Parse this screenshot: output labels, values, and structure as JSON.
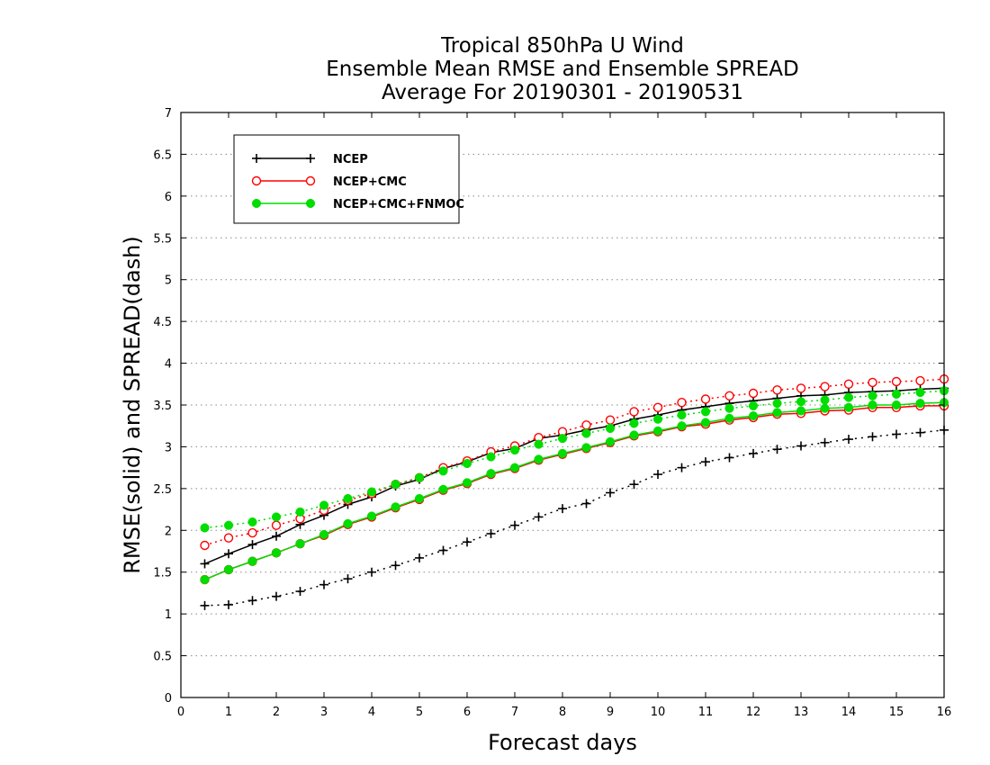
{
  "chart_data": {
    "type": "line",
    "title_lines": [
      "Tropical 850hPa U Wind",
      "Ensemble Mean RMSE and Ensemble SPREAD",
      "Average For 20190301 - 20190531"
    ],
    "xlabel": "Forecast days",
    "ylabel": "RMSE(solid) and SPREAD(dash)",
    "xlim": [
      0,
      16
    ],
    "ylim": [
      0,
      7
    ],
    "xticks": [
      "0",
      "1",
      "2",
      "3",
      "4",
      "5",
      "6",
      "7",
      "8",
      "9",
      "10",
      "11",
      "12",
      "13",
      "14",
      "15",
      "16"
    ],
    "yticks": [
      "0",
      "0.5",
      "1",
      "1.5",
      "2",
      "2.5",
      "3",
      "3.5",
      "4",
      "4.5",
      "5",
      "5.5",
      "6",
      "6.5",
      "7"
    ],
    "grid": "horizontal dotted",
    "legend_position": "top-left",
    "x": [
      0.5,
      1,
      1.5,
      2,
      2.5,
      3,
      3.5,
      4,
      4.5,
      5,
      5.5,
      6,
      6.5,
      7,
      7.5,
      8,
      8.5,
      9,
      9.5,
      10,
      10.5,
      11,
      11.5,
      12,
      12.5,
      13,
      13.5,
      14,
      14.5,
      15,
      15.5,
      16
    ],
    "series": [
      {
        "name": "NCEP",
        "color": "#000000",
        "marker": "plus",
        "rmse": [
          1.6,
          1.72,
          1.83,
          1.93,
          2.07,
          2.18,
          2.31,
          2.4,
          2.53,
          2.61,
          2.74,
          2.82,
          2.93,
          2.98,
          3.1,
          3.14,
          3.2,
          3.25,
          3.33,
          3.38,
          3.44,
          3.48,
          3.52,
          3.55,
          3.58,
          3.61,
          3.62,
          3.65,
          3.66,
          3.67,
          3.69,
          3.7
        ],
        "spread": [
          1.1,
          1.11,
          1.16,
          1.21,
          1.27,
          1.35,
          1.42,
          1.5,
          1.58,
          1.67,
          1.76,
          1.86,
          1.96,
          2.06,
          2.16,
          2.26,
          2.32,
          2.45,
          2.55,
          2.67,
          2.75,
          2.82,
          2.87,
          2.92,
          2.97,
          3.01,
          3.05,
          3.09,
          3.12,
          3.15,
          3.17,
          3.2
        ]
      },
      {
        "name": "NCEP+CMC",
        "color": "#ff0000",
        "marker": "open-circle",
        "rmse": [
          1.41,
          1.53,
          1.63,
          1.73,
          1.84,
          1.94,
          2.07,
          2.16,
          2.27,
          2.37,
          2.48,
          2.56,
          2.67,
          2.74,
          2.84,
          2.91,
          2.98,
          3.05,
          3.13,
          3.18,
          3.24,
          3.27,
          3.32,
          3.35,
          3.39,
          3.4,
          3.43,
          3.44,
          3.47,
          3.47,
          3.49,
          3.49
        ],
        "spread": [
          1.82,
          1.91,
          1.97,
          2.06,
          2.14,
          2.24,
          2.36,
          2.44,
          2.55,
          2.63,
          2.75,
          2.83,
          2.94,
          3.01,
          3.11,
          3.18,
          3.26,
          3.32,
          3.42,
          3.47,
          3.53,
          3.57,
          3.61,
          3.64,
          3.68,
          3.7,
          3.72,
          3.75,
          3.77,
          3.78,
          3.79,
          3.81
        ]
      },
      {
        "name": "NCEP+CMC+FNMOC",
        "color": "#00dd00",
        "marker": "filled-circle",
        "rmse": [
          1.41,
          1.53,
          1.63,
          1.73,
          1.84,
          1.95,
          2.08,
          2.17,
          2.28,
          2.38,
          2.49,
          2.57,
          2.68,
          2.75,
          2.85,
          2.92,
          2.99,
          3.06,
          3.14,
          3.19,
          3.25,
          3.29,
          3.34,
          3.37,
          3.41,
          3.43,
          3.46,
          3.47,
          3.5,
          3.5,
          3.52,
          3.53
        ],
        "spread": [
          2.03,
          2.06,
          2.1,
          2.16,
          2.22,
          2.3,
          2.38,
          2.46,
          2.55,
          2.63,
          2.71,
          2.8,
          2.88,
          2.96,
          3.03,
          3.1,
          3.16,
          3.22,
          3.28,
          3.33,
          3.38,
          3.42,
          3.46,
          3.49,
          3.52,
          3.54,
          3.56,
          3.59,
          3.61,
          3.63,
          3.65,
          3.67
        ]
      }
    ]
  }
}
